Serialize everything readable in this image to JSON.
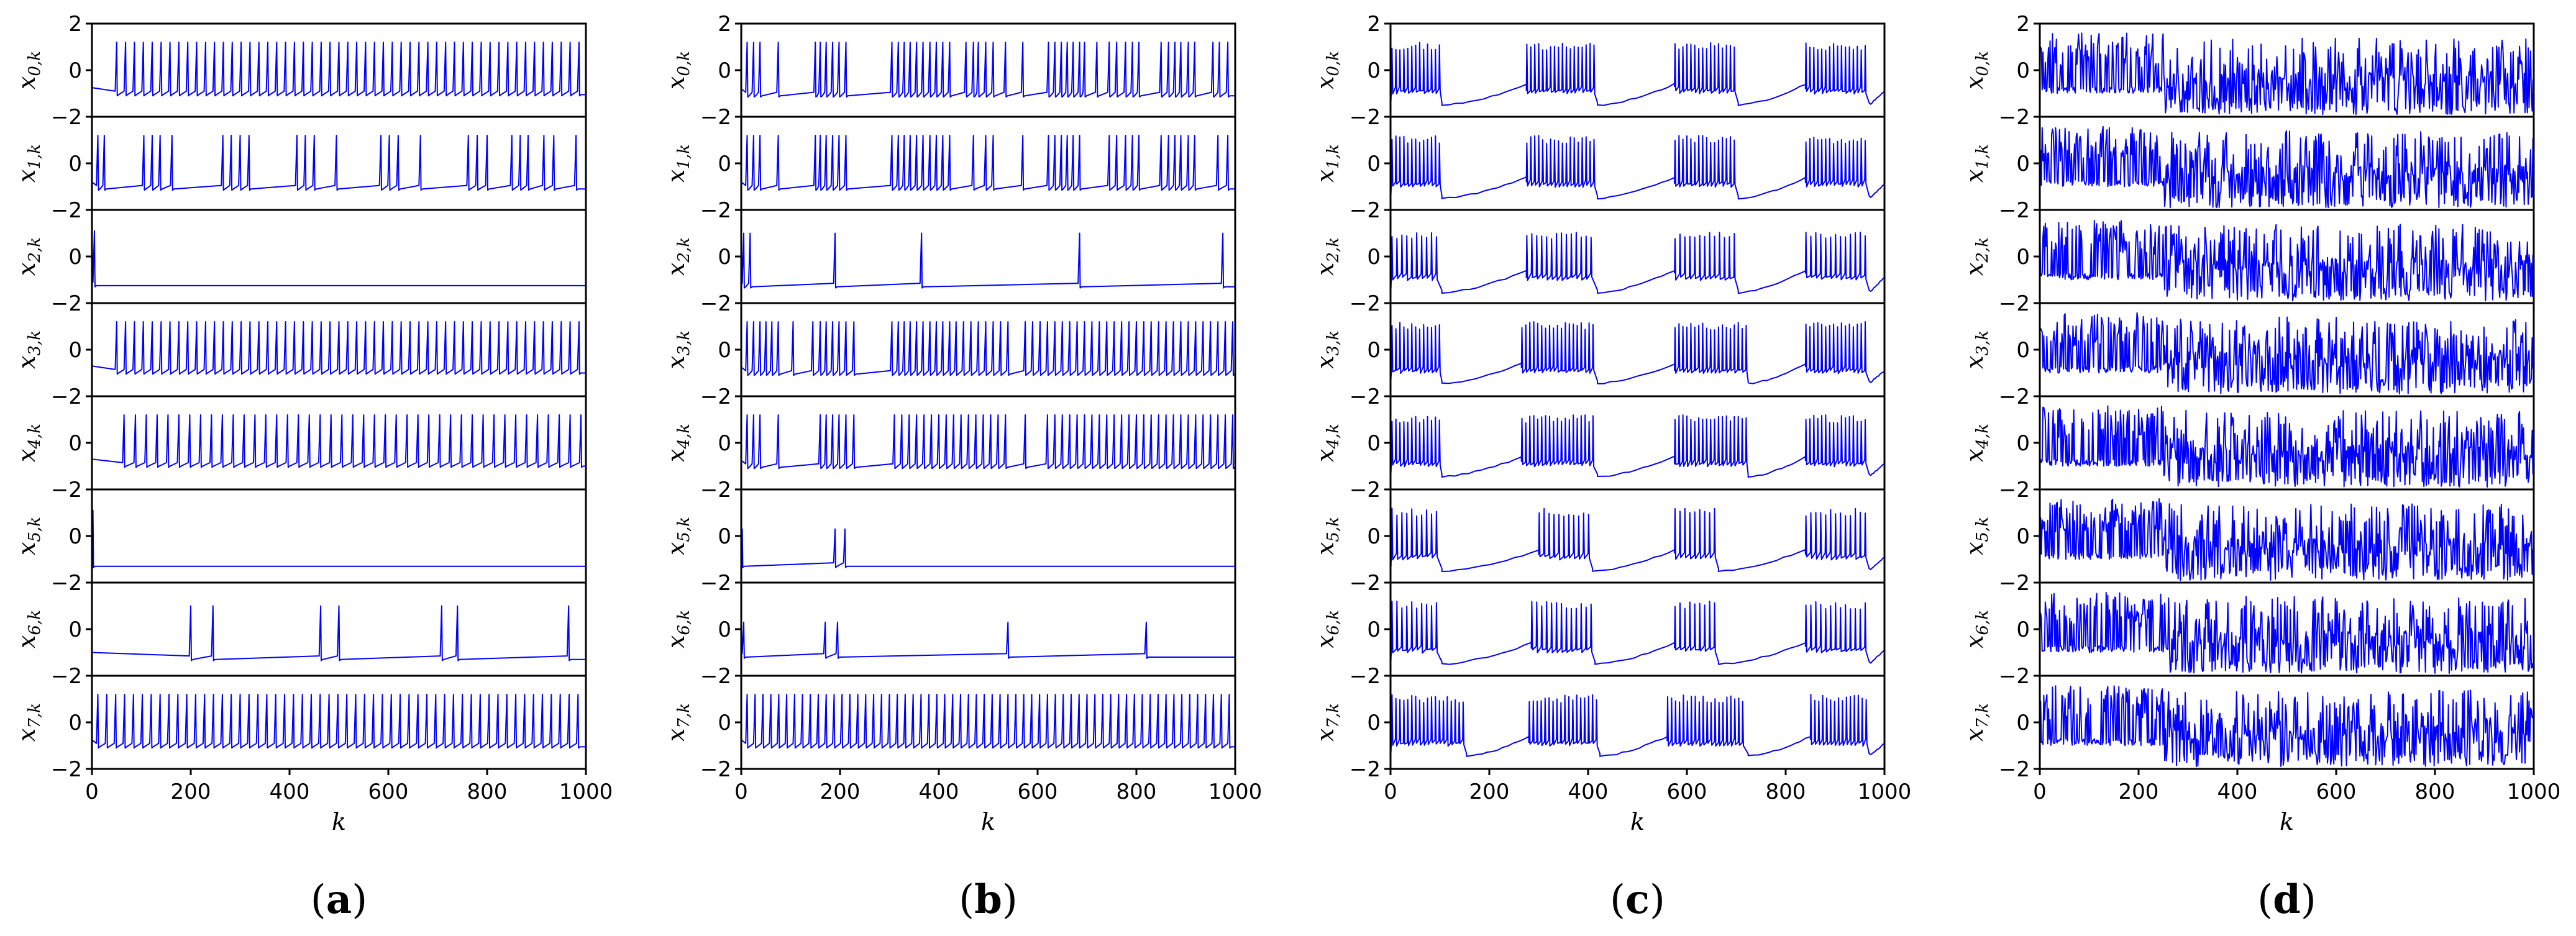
{
  "chart_data": {
    "type": "line",
    "color": "#0000ff",
    "x_label": "k",
    "x_range": [
      0,
      1000
    ],
    "x_ticks": [
      0,
      200,
      400,
      600,
      800,
      1000
    ],
    "y_range": [
      -2,
      2
    ],
    "y_ticks": [
      -2,
      0,
      2
    ],
    "channels": [
      "x_{0,k}",
      "x_{1,k}",
      "x_{2,k}",
      "x_{3,k}",
      "x_{4,k}",
      "x_{5,k}",
      "x_{6,k}",
      "x_{7,k}"
    ],
    "channel_labels": [
      {
        "main": "x",
        "sub": "0,k"
      },
      {
        "main": "x",
        "sub": "1,k"
      },
      {
        "main": "x",
        "sub": "2,k"
      },
      {
        "main": "x",
        "sub": "3,k"
      },
      {
        "main": "x",
        "sub": "4,k"
      },
      {
        "main": "x",
        "sub": "5,k"
      },
      {
        "main": "x",
        "sub": "6,k"
      },
      {
        "main": "x",
        "sub": "7,k"
      }
    ],
    "panels": [
      {
        "caption": "(a)",
        "letter": "a",
        "mode": "spikes",
        "series": [
          {
            "rest": -1.05,
            "peak": 1.2,
            "spikes": [
              50,
              68,
              86,
              104,
              122,
              140,
              158,
              176,
              194,
              212,
              230,
              248,
              266,
              284,
              302,
              320,
              338,
              356,
              374,
              392,
              410,
              428,
              446,
              464,
              482,
              500,
              518,
              536,
              554,
              572,
              590,
              608,
              626,
              644,
              662,
              680,
              698,
              716,
              734,
              752,
              770,
              788,
              806,
              824,
              842,
              860,
              878,
              896,
              914,
              932,
              950,
              968,
              986
            ]
          },
          {
            "rest": -1.1,
            "peak": 1.2,
            "spikes": [
              12,
              25,
              105,
              122,
              138,
              162,
              265,
              282,
              300,
              318,
              415,
              432,
              450,
              495,
              585,
              602,
              620,
              665,
              762,
              780,
              800,
              850,
              867,
              883,
              915,
              935,
              980
            ]
          },
          {
            "rest": -1.25,
            "peak": 1.1,
            "spikes": [
              5
            ]
          },
          {
            "rest": -1.0,
            "peak": 1.2,
            "spikes": [
              50,
              68,
              86,
              104,
              122,
              140,
              158,
              176,
              194,
              212,
              230,
              248,
              266,
              284,
              302,
              320,
              338,
              356,
              374,
              392,
              410,
              428,
              446,
              464,
              482,
              500,
              518,
              536,
              554,
              572,
              590,
              608,
              626,
              644,
              662,
              680,
              698,
              716,
              734,
              752,
              770,
              788,
              806,
              824,
              842,
              860,
              878,
              896,
              914,
              932,
              950,
              968,
              986
            ]
          },
          {
            "rest": -1.0,
            "peak": 1.2,
            "spikes": [
              65,
              88,
              110,
              132,
              154,
              176,
              198,
              220,
              242,
              264,
              286,
              308,
              330,
              352,
              374,
              396,
              418,
              440,
              462,
              484,
              506,
              528,
              550,
              572,
              594,
              616,
              638,
              660,
              682,
              704,
              726,
              748,
              770,
              792,
              814,
              836,
              858,
              880,
              902,
              924,
              946,
              968,
              990
            ]
          },
          {
            "rest": -1.3,
            "peak": 1.1,
            "spikes": [
              2
            ]
          },
          {
            "rest": -1.3,
            "peak": 1.0,
            "spikes": [
              200,
              245,
              463,
              500,
              708,
              740,
              965
            ]
          },
          {
            "rest": -1.05,
            "peak": 1.2,
            "spikes": [
              12,
              30,
              48,
              66,
              84,
              102,
              120,
              138,
              156,
              174,
              192,
              210,
              228,
              246,
              264,
              282,
              300,
              318,
              336,
              354,
              372,
              390,
              408,
              426,
              444,
              462,
              480,
              498,
              516,
              534,
              552,
              570,
              588,
              606,
              624,
              642,
              660,
              678,
              696,
              714,
              732,
              750,
              768,
              786,
              804,
              822,
              840,
              858,
              876,
              894,
              912,
              930,
              948,
              966,
              984
            ]
          }
        ]
      },
      {
        "caption": "(b)",
        "letter": "b",
        "mode": "spikes",
        "series": [
          {
            "rest": -1.1,
            "peak": 1.2,
            "spikes": [
              12,
              25,
              38,
              75,
              150,
              160,
              172,
              185,
              198,
              212,
              305,
              318,
              330,
              342,
              355,
              368,
              382,
              395,
              408,
              422,
              455,
              470,
              480,
              495,
              510,
              535,
              570,
              622,
              635,
              648,
              660,
              672,
              685,
              695,
              720,
              745,
              760,
              778,
              792,
              805,
              850,
              865,
              878,
              890,
              905,
              918,
              955,
              968,
              985
            ]
          },
          {
            "rest": -1.1,
            "peak": 1.2,
            "spikes": [
              12,
              25,
              38,
              75,
              150,
              160,
              172,
              185,
              198,
              212,
              305,
              318,
              330,
              342,
              355,
              368,
              382,
              395,
              408,
              422,
              470,
              495,
              510,
              570,
              622,
              635,
              648,
              660,
              672,
              685,
              745,
              760,
              778,
              792,
              805,
              850,
              865,
              878,
              890,
              905,
              918,
              965,
              985
            ]
          },
          {
            "rest": -1.3,
            "peak": 1.0,
            "spikes": [
              5,
              18,
              190,
              365,
              685,
              975
            ]
          },
          {
            "rest": -1.05,
            "peak": 1.2,
            "spikes": [
              12,
              25,
              38,
              50,
              62,
              75,
              105,
              145,
              160,
              172,
              185,
              198,
              212,
              228,
              305,
              318,
              330,
              342,
              355,
              368,
              382,
              395,
              408,
              422,
              435,
              450,
              465,
              480,
              495,
              510,
              525,
              540,
              575,
              590,
              605,
              620,
              635,
              650,
              665,
              680,
              695,
              710,
              725,
              740,
              755,
              770,
              785,
              800,
              815,
              830,
              845,
              860,
              875,
              890,
              905,
              920,
              935,
              950,
              965,
              980,
              995
            ]
          },
          {
            "rest": -1.05,
            "peak": 1.2,
            "spikes": [
              12,
              25,
              38,
              75,
              160,
              172,
              185,
              198,
              212,
              228,
              310,
              325,
              340,
              355,
              370,
              385,
              400,
              415,
              430,
              445,
              460,
              475,
              490,
              505,
              520,
              535,
              575,
              620,
              635,
              650,
              665,
              680,
              695,
              710,
              725,
              740,
              755,
              770,
              785,
              800,
              815,
              830,
              845,
              860,
              875,
              890,
              905,
              920,
              935,
              950,
              965,
              980,
              995
            ]
          },
          {
            "rest": -1.3,
            "peak": 0.3,
            "spikes": [
              2,
              190,
              210
            ]
          },
          {
            "rest": -1.2,
            "peak": 0.3,
            "spikes": [
              5,
              170,
              195,
              540,
              820
            ]
          },
          {
            "rest": -1.05,
            "peak": 1.2,
            "spikes": [
              12,
              28,
              44,
              60,
              76,
              92,
              108,
              124,
              140,
              156,
              172,
              188,
              204,
              220,
              236,
              252,
              268,
              284,
              300,
              316,
              332,
              348,
              364,
              380,
              396,
              412,
              428,
              444,
              460,
              476,
              492,
              508,
              524,
              540,
              556,
              572,
              588,
              604,
              620,
              636,
              652,
              668,
              684,
              700,
              716,
              732,
              748,
              764,
              780,
              796,
              812,
              828,
              844,
              860,
              876,
              892,
              908,
              924,
              940,
              956,
              972,
              988
            ]
          }
        ]
      },
      {
        "caption": "(c)",
        "letter": "c",
        "mode": "bursts",
        "series": [
          {
            "bursts": [
              [
                2,
                100
              ],
              [
                275,
                415
              ],
              [
                575,
                700
              ],
              [
                840,
                965
              ]
            ],
            "period": 8,
            "rest": -1.5,
            "peak": 1.2
          },
          {
            "bursts": [
              [
                2,
                100
              ],
              [
                275,
                415
              ],
              [
                575,
                700
              ],
              [
                840,
                965
              ]
            ],
            "period": 8,
            "rest": -1.5,
            "peak": 1.2
          },
          {
            "bursts": [
              [
                2,
                100
              ],
              [
                275,
                415
              ],
              [
                575,
                700
              ],
              [
                840,
                965
              ]
            ],
            "period": 10,
            "rest": -1.55,
            "peak": 1.1
          },
          {
            "bursts": [
              [
                2,
                100
              ],
              [
                265,
                415
              ],
              [
                575,
                720
              ],
              [
                840,
                965
              ]
            ],
            "period": 8,
            "rest": -1.45,
            "peak": 1.2
          },
          {
            "bursts": [
              [
                2,
                100
              ],
              [
                265,
                415
              ],
              [
                575,
                720
              ],
              [
                840,
                965
              ]
            ],
            "period": 8,
            "rest": -1.45,
            "peak": 1.2
          },
          {
            "bursts": [
              [
                2,
                100
              ],
              [
                300,
                405
              ],
              [
                575,
                660
              ],
              [
                840,
                965
              ]
            ],
            "period": 10,
            "rest": -1.5,
            "peak": 1.2
          },
          {
            "bursts": [
              [
                2,
                100
              ],
              [
                285,
                410
              ],
              [
                575,
                660
              ],
              [
                840,
                965
              ]
            ],
            "period": 10,
            "rest": -1.5,
            "peak": 1.2
          },
          {
            "bursts": [
              [
                2,
                150
              ],
              [
                280,
                420
              ],
              [
                560,
                720
              ],
              [
                850,
                965
              ]
            ],
            "period": 8,
            "rest": -1.45,
            "peak": 1.2
          }
        ]
      },
      {
        "caption": "(d)",
        "letter": "d",
        "mode": "chaos",
        "series": [
          {
            "dense_end": 250,
            "seed": 11
          },
          {
            "dense_end": 250,
            "seed": 23
          },
          {
            "dense_end": 250,
            "seed": 37
          },
          {
            "dense_end": 250,
            "seed": 41
          },
          {
            "dense_end": 250,
            "seed": 53
          },
          {
            "dense_end": 250,
            "seed": 67
          },
          {
            "dense_end": 250,
            "seed": 79
          },
          {
            "dense_end": 250,
            "seed": 97
          }
        ]
      }
    ]
  }
}
